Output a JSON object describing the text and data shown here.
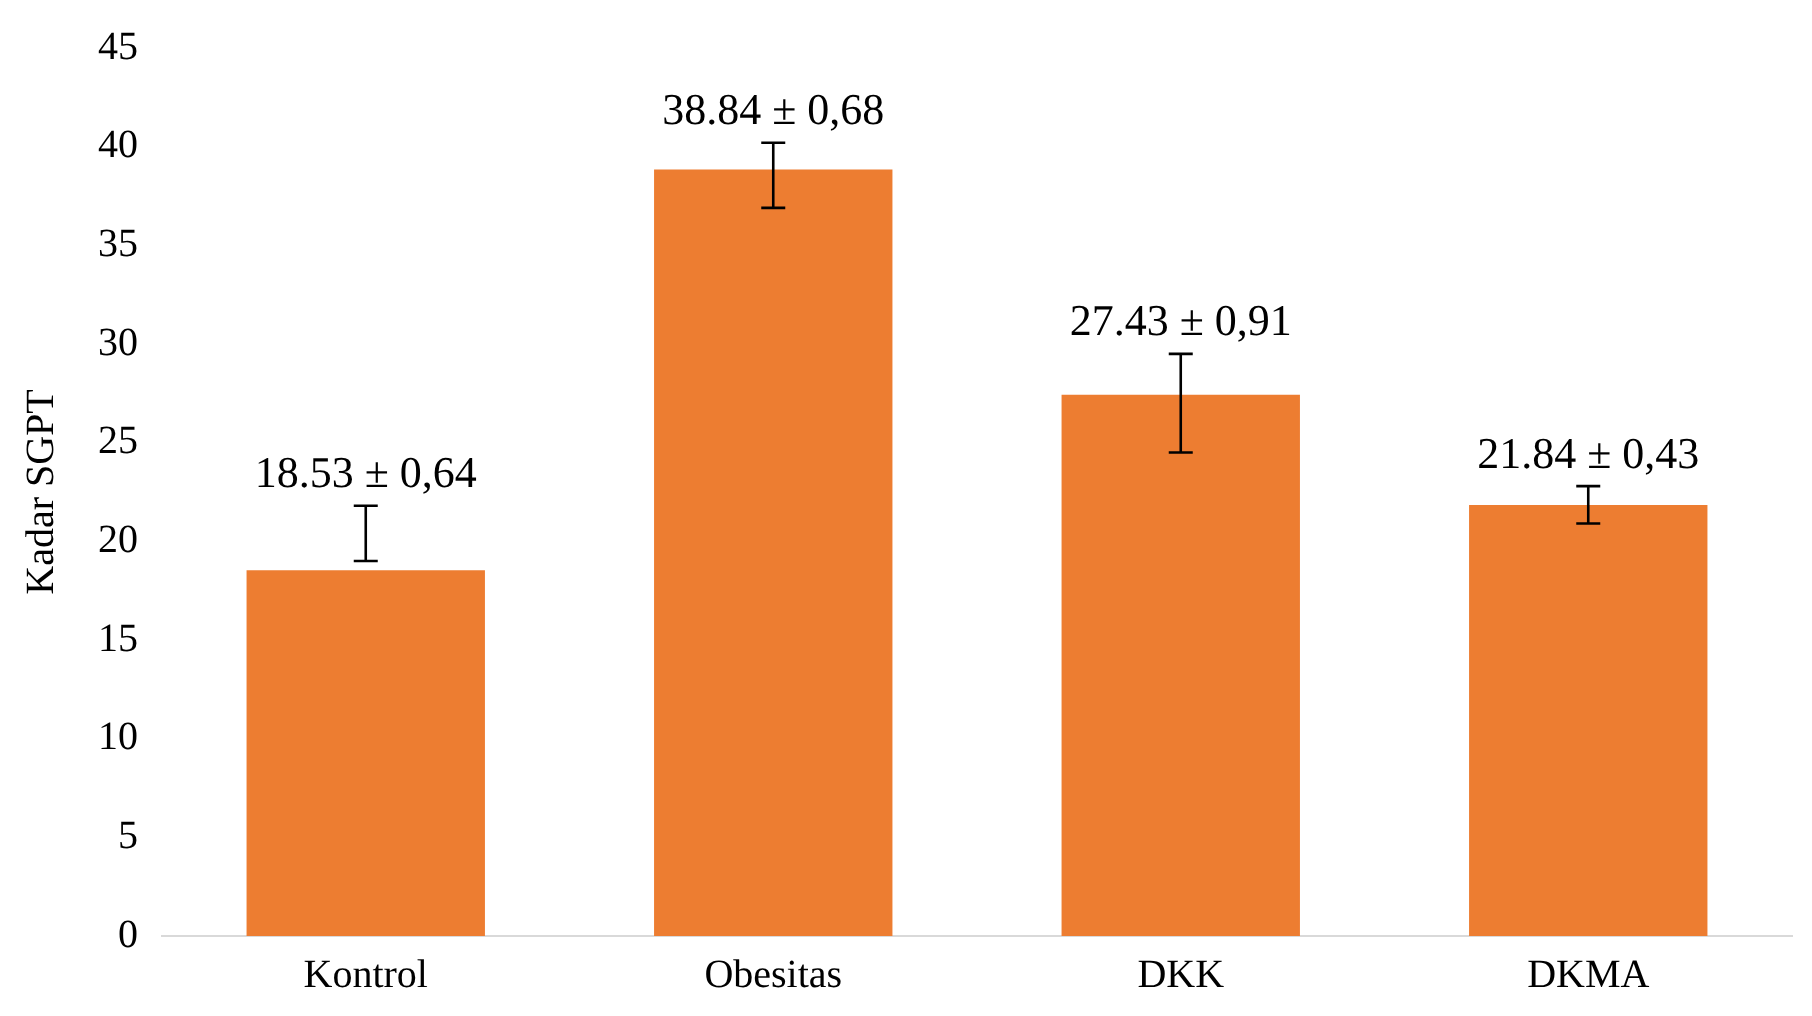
{
  "chart_data": {
    "type": "bar",
    "ylabel": "Kadar SGPT",
    "categories": [
      "Kontrol",
      "Obesitas",
      "DKK",
      "DKMA"
    ],
    "values": [
      18.53,
      38.84,
      27.43,
      21.84
    ],
    "color": "#ed7d31",
    "errors": [
      [
        19.0,
        21.8
      ],
      [
        36.9,
        40.2
      ],
      [
        24.5,
        29.5
      ],
      [
        20.9,
        22.8
      ]
    ],
    "value_labels": [
      "18.53 ± 0,64",
      "38.84 ± 0,68",
      "27.43 ± 0,91",
      "21.84 ± 0,43"
    ],
    "ylim": [
      0,
      45
    ],
    "yticks": [
      0,
      5,
      10,
      15,
      20,
      25,
      30,
      35,
      40,
      45
    ],
    "grid": false,
    "legend": false
  }
}
